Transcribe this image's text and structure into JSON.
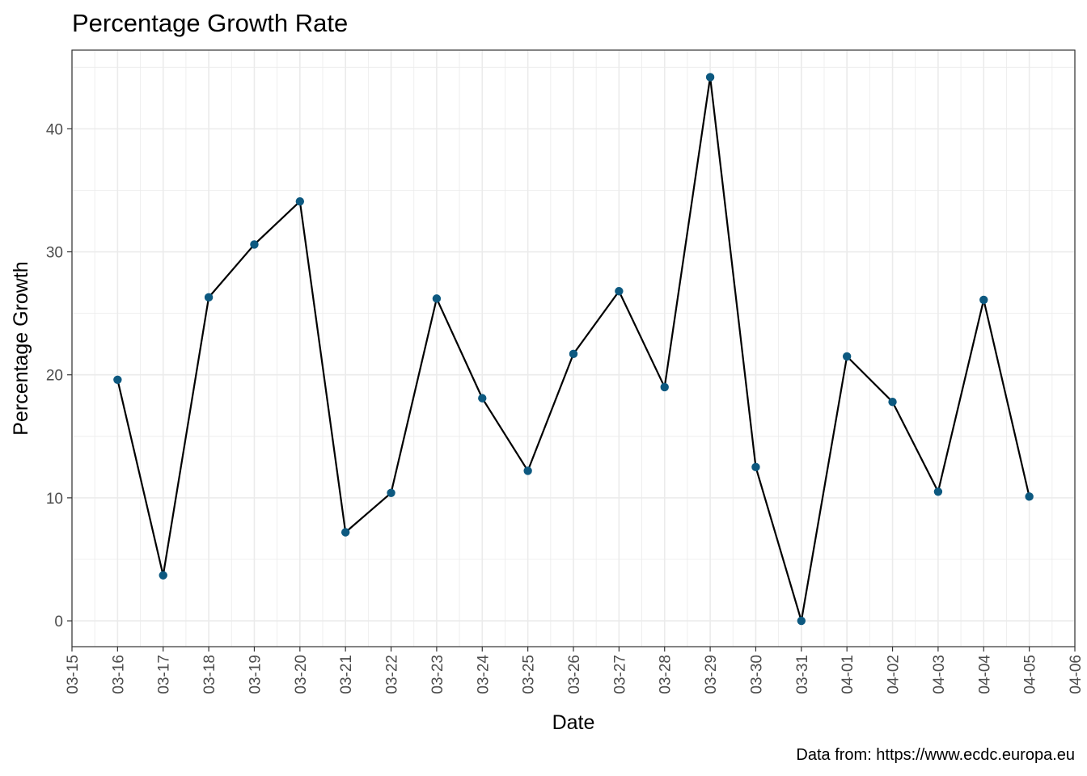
{
  "chart_data": {
    "type": "line",
    "title": "Percentage Growth Rate",
    "xlabel": "Date",
    "ylabel": "Percentage Growth",
    "caption": "Data from: https://www.ecdc.europa.eu",
    "x": [
      "03-16",
      "03-17",
      "03-18",
      "03-19",
      "03-20",
      "03-21",
      "03-22",
      "03-23",
      "03-24",
      "03-25",
      "03-26",
      "03-27",
      "03-28",
      "03-29",
      "03-30",
      "03-31",
      "04-01",
      "04-02",
      "04-03",
      "04-04",
      "04-05"
    ],
    "x_ticks": [
      "03-15",
      "03-16",
      "03-17",
      "03-18",
      "03-19",
      "03-20",
      "03-21",
      "03-22",
      "03-23",
      "03-24",
      "03-25",
      "03-26",
      "03-27",
      "03-28",
      "03-29",
      "03-30",
      "03-31",
      "04-01",
      "04-02",
      "04-03",
      "04-04",
      "04-05",
      "04-06"
    ],
    "y_ticks": [
      0,
      10,
      20,
      30,
      40
    ],
    "ylim": [
      -2.1,
      46.4
    ],
    "series": [
      {
        "values": [
          19.6,
          3.7,
          26.3,
          30.6,
          34.1,
          7.2,
          10.4,
          26.2,
          18.1,
          12.2,
          21.7,
          26.8,
          19.0,
          44.2,
          12.5,
          0.0,
          21.5,
          17.8,
          10.5,
          26.1,
          10.1
        ]
      }
    ],
    "grid": true,
    "legend": "none",
    "colors": {
      "line": "#000000",
      "point": "#0d5980",
      "grid": "#ebebeb",
      "panel_border": "#333333"
    }
  }
}
